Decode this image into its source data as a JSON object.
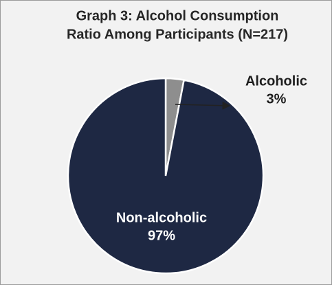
{
  "chart_data": {
    "type": "pie",
    "title": [
      "Graph 3: Alcohol Consumption",
      "Ratio Among Participants (N=217)"
    ],
    "categories": [
      "Alcoholic",
      "Non-alcoholic"
    ],
    "values": [
      3,
      97
    ],
    "value_labels": [
      "3%",
      "97%"
    ],
    "colors": [
      "#8e8e8e",
      "#1e2843"
    ]
  }
}
